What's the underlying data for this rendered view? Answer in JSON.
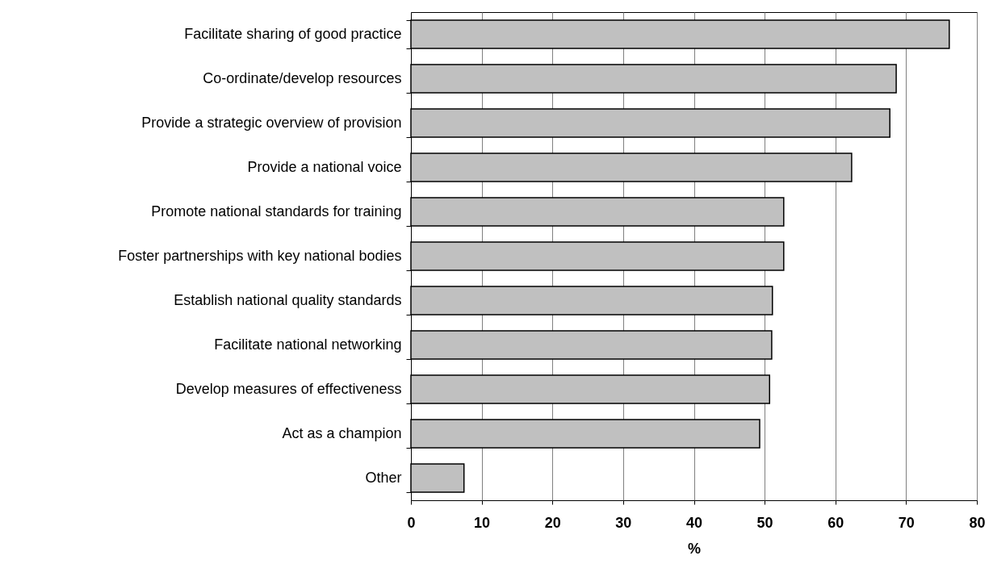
{
  "chart_data": {
    "type": "bar",
    "orientation": "horizontal",
    "xlabel": "%",
    "categories": [
      "Facilitate sharing of good practice",
      "Co-ordinate/develop resources",
      "Provide a strategic overview of provision",
      "Provide a national voice",
      "Promote national standards for training",
      "Foster partnerships with key national bodies",
      "Establish national quality standards",
      "Facilitate national networking",
      "Develop measures of effectiveness",
      "Act as a champion",
      "Other"
    ],
    "values": [
      76.1,
      68.6,
      67.7,
      62.3,
      52.7,
      52.7,
      51.1,
      51.0,
      50.7,
      49.3,
      7.5
    ],
    "color": "#c0c0c0",
    "xlim": [
      0,
      80
    ],
    "xticks": [
      0,
      10,
      20,
      30,
      40,
      50,
      60,
      70,
      80
    ],
    "grid": "x"
  }
}
